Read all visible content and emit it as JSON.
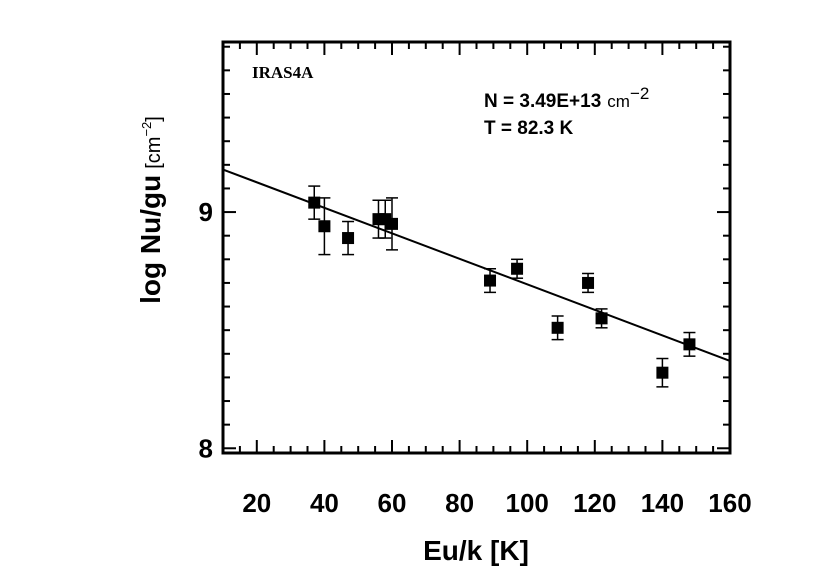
{
  "chart_data": {
    "type": "scatter",
    "source_label": "IRAS4A",
    "annotation": {
      "n_text": "N = 3.49E+13",
      "n_unit": "cm",
      "n_unit_exp": "−2",
      "t_text": "T = 82.3 K"
    },
    "xlabel": "Eu/k [K]",
    "ylabel": {
      "main": "log Nu/gu",
      "unit": "[cm",
      "unit_exp": "−2",
      "unit_close": "]"
    },
    "xlim": [
      10,
      160
    ],
    "ylim": [
      7.98,
      9.72
    ],
    "x_ticks": [
      20,
      40,
      60,
      80,
      100,
      120,
      140,
      160
    ],
    "y_ticks": [
      8,
      9
    ],
    "points": [
      {
        "x": 37,
        "y": 9.04,
        "err": 0.07
      },
      {
        "x": 40,
        "y": 8.94,
        "err": 0.12
      },
      {
        "x": 47,
        "y": 8.89,
        "err": 0.07
      },
      {
        "x": 56,
        "y": 8.97,
        "err": 0.08
      },
      {
        "x": 58,
        "y": 8.97,
        "err": 0.08
      },
      {
        "x": 60,
        "y": 8.95,
        "err": 0.11
      },
      {
        "x": 89,
        "y": 8.71,
        "err": 0.05
      },
      {
        "x": 97,
        "y": 8.76,
        "err": 0.04
      },
      {
        "x": 109,
        "y": 8.51,
        "err": 0.05
      },
      {
        "x": 118,
        "y": 8.7,
        "err": 0.04
      },
      {
        "x": 122,
        "y": 8.55,
        "err": 0.04
      },
      {
        "x": 140,
        "y": 8.32,
        "err": 0.06
      },
      {
        "x": 148,
        "y": 8.44,
        "err": 0.05
      }
    ],
    "fit_line": {
      "x": [
        10,
        160
      ],
      "y": [
        9.18,
        8.37
      ]
    },
    "grid": false
  }
}
